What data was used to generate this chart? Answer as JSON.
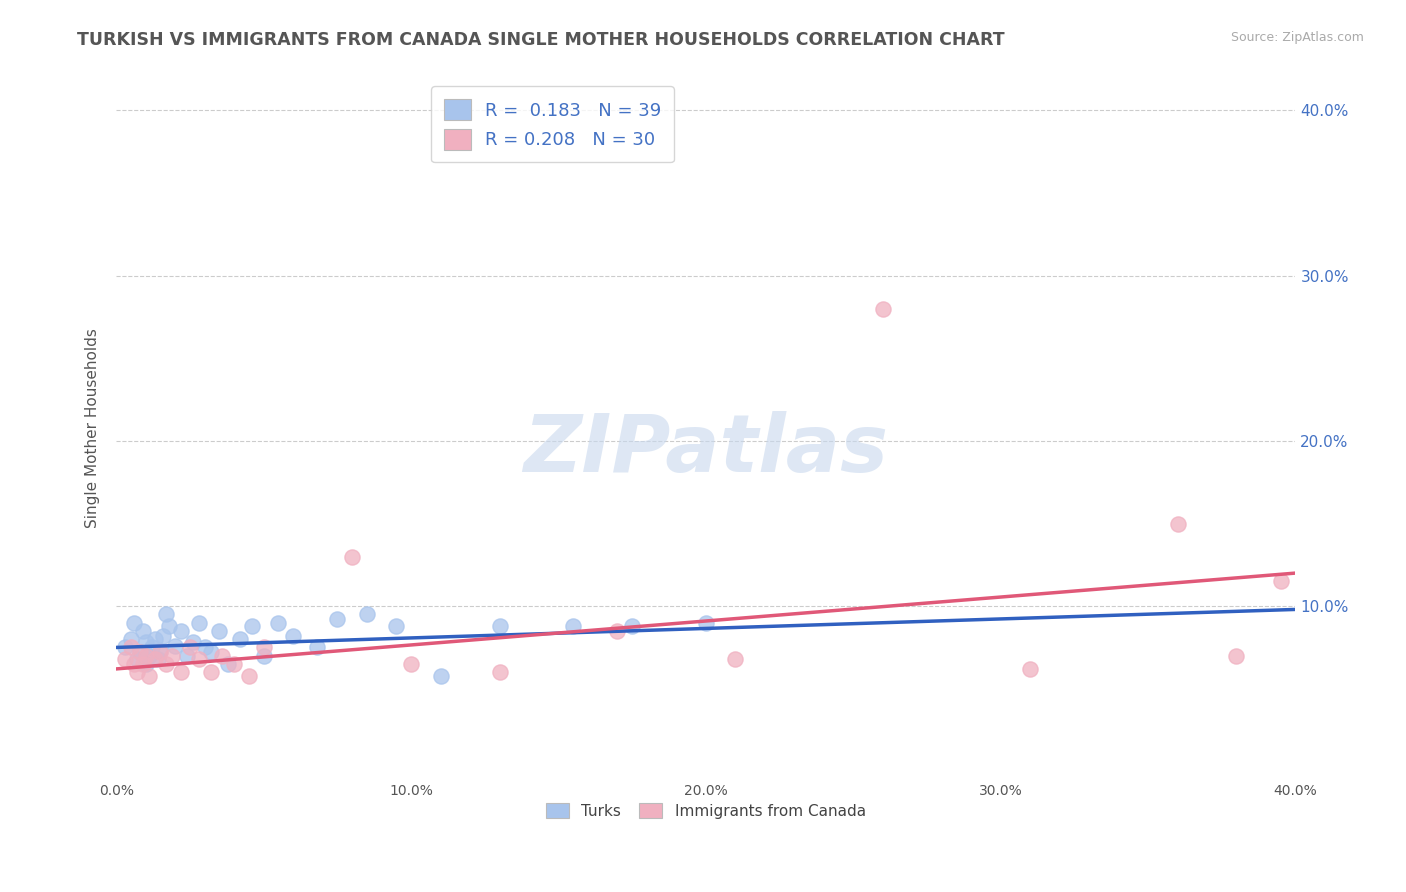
{
  "title": "TURKISH VS IMMIGRANTS FROM CANADA SINGLE MOTHER HOUSEHOLDS CORRELATION CHART",
  "source": "Source: ZipAtlas.com",
  "ylabel": "Single Mother Households",
  "xlabel": "",
  "xlim": [
    0.0,
    0.4
  ],
  "ylim": [
    -0.005,
    0.42
  ],
  "yticks": [
    0.1,
    0.2,
    0.3,
    0.4
  ],
  "ytick_labels": [
    "10.0%",
    "20.0%",
    "30.0%",
    "40.0%"
  ],
  "xticks": [
    0.0,
    0.1,
    0.2,
    0.3,
    0.4
  ],
  "xtick_labels": [
    "0.0%",
    "10.0%",
    "20.0%",
    "30.0%",
    "40.0%"
  ],
  "blue_color": "#a8c4ec",
  "pink_color": "#f0b0c0",
  "blue_line_color": "#3060c0",
  "pink_line_color": "#e05878",
  "legend_blue_label": "R =  0.183   N = 39",
  "legend_pink_label": "R = 0.208   N = 30",
  "legend1_label": "Turks",
  "legend2_label": "Immigrants from Canada",
  "watermark": "ZIPatlas",
  "background_color": "#ffffff",
  "grid_color": "#cccccc",
  "title_color": "#555555",
  "turks_x": [
    0.003,
    0.005,
    0.006,
    0.007,
    0.008,
    0.009,
    0.01,
    0.01,
    0.011,
    0.012,
    0.013,
    0.014,
    0.015,
    0.016,
    0.017,
    0.018,
    0.02,
    0.022,
    0.024,
    0.026,
    0.028,
    0.03,
    0.032,
    0.035,
    0.038,
    0.042,
    0.046,
    0.05,
    0.055,
    0.06,
    0.068,
    0.075,
    0.085,
    0.095,
    0.11,
    0.13,
    0.155,
    0.175,
    0.2
  ],
  "turks_y": [
    0.075,
    0.08,
    0.09,
    0.068,
    0.072,
    0.085,
    0.078,
    0.065,
    0.07,
    0.075,
    0.08,
    0.068,
    0.073,
    0.082,
    0.095,
    0.088,
    0.076,
    0.085,
    0.07,
    0.078,
    0.09,
    0.075,
    0.072,
    0.085,
    0.065,
    0.08,
    0.088,
    0.07,
    0.09,
    0.082,
    0.075,
    0.092,
    0.095,
    0.088,
    0.058,
    0.088,
    0.088,
    0.088,
    0.09
  ],
  "canada_x": [
    0.003,
    0.005,
    0.006,
    0.007,
    0.008,
    0.009,
    0.01,
    0.011,
    0.013,
    0.015,
    0.017,
    0.019,
    0.022,
    0.025,
    0.028,
    0.032,
    0.036,
    0.04,
    0.045,
    0.05,
    0.08,
    0.1,
    0.13,
    0.17,
    0.21,
    0.26,
    0.31,
    0.36,
    0.38,
    0.395
  ],
  "canada_y": [
    0.068,
    0.075,
    0.065,
    0.06,
    0.072,
    0.065,
    0.07,
    0.058,
    0.068,
    0.072,
    0.065,
    0.07,
    0.06,
    0.075,
    0.068,
    0.06,
    0.07,
    0.065,
    0.058,
    0.075,
    0.13,
    0.065,
    0.06,
    0.085,
    0.068,
    0.28,
    0.062,
    0.15,
    0.07,
    0.115
  ],
  "blue_trend_x": [
    0.0,
    0.4
  ],
  "blue_trend_y": [
    0.075,
    0.098
  ],
  "pink_trend_x": [
    0.0,
    0.4
  ],
  "pink_trend_y": [
    0.062,
    0.12
  ]
}
